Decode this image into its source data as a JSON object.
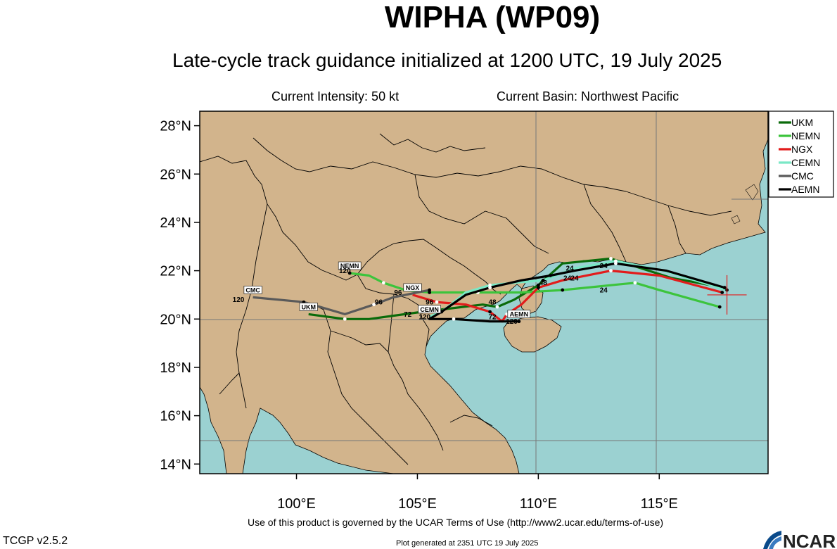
{
  "title": "WIPHA (WP09)",
  "subtitle": "Late-cycle track guidance initialized at 1200 UTC, 19 July 2025",
  "intensity": "Current Intensity: 50 kt",
  "basin": "Current Basin: Northwest Pacific",
  "terms": "Use of this product is governed by the UCAR Terms of Use (http://www2.ucar.edu/terms-of-use)",
  "version": "TCGP v2.5.2",
  "generated": "Plot generated at 2351 UTC   19 July 2025",
  "logo_text": "NCAR",
  "colors": {
    "land": "#d2b48c",
    "ocean": "#9bd1d1",
    "UKM": "#0a6b0a",
    "NEMN": "#3cc43c",
    "NGX": "#e21c1c",
    "CEMN": "#7ae8c6",
    "CMC": "#5a5a5a",
    "AEMN": "#000000",
    "current_position": "#e21c1c"
  },
  "map": {
    "lon_range": [
      96,
      119.5
    ],
    "lat_range": [
      13.6,
      28.6
    ],
    "lat_ticks": [
      "28°N",
      "26°N",
      "24°N",
      "22°N",
      "20°N",
      "18°N",
      "16°N",
      "14°N"
    ],
    "lon_ticks": [
      "100°E",
      "105°E",
      "110°E",
      "115°E"
    ],
    "current_position": {
      "lon": 117.8,
      "lat": 21.0
    },
    "legend": [
      "UKM",
      "NEMN",
      "NGX",
      "CEMN",
      "CMC",
      "AEMN"
    ],
    "tracks": [
      {
        "name": "UKM",
        "label": "UKM",
        "points": [
          [
            117.7,
            21.3
          ],
          [
            115.5,
            21.7
          ],
          [
            113,
            22.5
          ],
          [
            111,
            22.3
          ],
          [
            110,
            21.4
          ],
          [
            109,
            20.8
          ],
          [
            108.3,
            20.5
          ],
          [
            107.7,
            20.6
          ],
          [
            105.2,
            20.3
          ],
          [
            103,
            20.0
          ],
          [
            102,
            20.0
          ],
          [
            100.5,
            20.2
          ]
        ],
        "hour_labels": [
          {
            "text": "24",
            "lon": 112.7,
            "lat": 22.1
          }
        ]
      },
      {
        "name": "NEMN",
        "label": "NEMN",
        "points": [
          [
            117.5,
            20.5
          ],
          [
            115,
            21.2
          ],
          [
            114,
            21.5
          ],
          [
            113,
            21.4
          ],
          [
            111,
            21.2
          ],
          [
            109.3,
            21.1
          ],
          [
            107.5,
            21.1
          ],
          [
            106.5,
            21.1
          ],
          [
            105.5,
            21.1
          ],
          [
            104.5,
            21.2
          ],
          [
            103.6,
            21.5
          ],
          [
            103,
            21.8
          ],
          [
            102.2,
            21.9
          ]
        ],
        "hour_labels": [
          {
            "text": "24",
            "lon": 112.7,
            "lat": 21.1
          },
          {
            "text": "120",
            "lon": 102.0,
            "lat": 21.9
          }
        ]
      },
      {
        "name": "NGX",
        "label": "NGX",
        "points": [
          [
            117.6,
            21.1
          ],
          [
            115,
            21.8
          ],
          [
            113,
            22.0
          ],
          [
            111,
            21.6
          ],
          [
            110,
            21.3
          ],
          [
            109.3,
            20.6
          ],
          [
            108.7,
            20.2
          ],
          [
            108.5,
            19.9
          ],
          [
            108.0,
            20.3
          ],
          [
            107,
            20.6
          ],
          [
            105.8,
            20.7
          ],
          [
            104.8,
            21.0
          ]
        ],
        "hour_labels": [
          {
            "text": "24",
            "lon": 111.2,
            "lat": 21.6
          },
          {
            "text": "96",
            "lon": 105.5,
            "lat": 20.6
          },
          {
            "text": "48",
            "lon": 108.1,
            "lat": 20.6
          }
        ]
      },
      {
        "name": "CEMN",
        "label": "CEMN",
        "points": [
          [
            117.8,
            21.2
          ],
          [
            115.2,
            22.0
          ],
          [
            113.2,
            22.4
          ],
          [
            111.5,
            22.1
          ],
          [
            110.2,
            21.6
          ],
          [
            109.0,
            21.5
          ],
          [
            108.0,
            21.4
          ],
          [
            107.0,
            21.1
          ],
          [
            106.0,
            20.3
          ],
          [
            105.5,
            20.1
          ]
        ],
        "hour_labels": []
      },
      {
        "name": "CMC",
        "label": "CMC",
        "points": [
          [
            105.5,
            21.2
          ],
          [
            104.0,
            20.9
          ],
          [
            103.2,
            20.6
          ],
          [
            102.0,
            20.2
          ],
          [
            100.3,
            20.7
          ],
          [
            98.2,
            20.9
          ]
        ],
        "hour_labels": [
          {
            "text": "96",
            "lon": 103.4,
            "lat": 20.6
          },
          {
            "text": "120",
            "lon": 97.6,
            "lat": 20.7
          }
        ]
      },
      {
        "name": "AEMN",
        "label": "AEMN",
        "points": [
          [
            117.7,
            21.3
          ],
          [
            115.3,
            22.0
          ],
          [
            113.2,
            22.3
          ],
          [
            111.5,
            22.0
          ],
          [
            110.5,
            21.8
          ],
          [
            109.3,
            21.6
          ],
          [
            108.0,
            21.3
          ],
          [
            107.0,
            21.0
          ],
          [
            106.0,
            20.3
          ],
          [
            105.5,
            20.0
          ],
          [
            106.5,
            20.0
          ],
          [
            108.0,
            19.9
          ],
          [
            109.2,
            19.9
          ]
        ],
        "hour_labels": [
          {
            "text": "24",
            "lon": 111.5,
            "lat": 21.6
          },
          {
            "text": "120",
            "lon": 108.9,
            "lat": 19.8
          }
        ]
      }
    ],
    "extra_labels": [
      {
        "text": "72",
        "lon": 104.6,
        "lat": 20.1
      },
      {
        "text": "120",
        "lon": 105.3,
        "lat": 20.0
      },
      {
        "text": "96",
        "lon": 104.2,
        "lat": 21.0
      },
      {
        "text": "24",
        "lon": 111.3,
        "lat": 22.0
      },
      {
        "text": "48",
        "lon": 110.2,
        "lat": 21.4
      },
      {
        "text": "72",
        "lon": 108.1,
        "lat": 20.0
      }
    ]
  }
}
